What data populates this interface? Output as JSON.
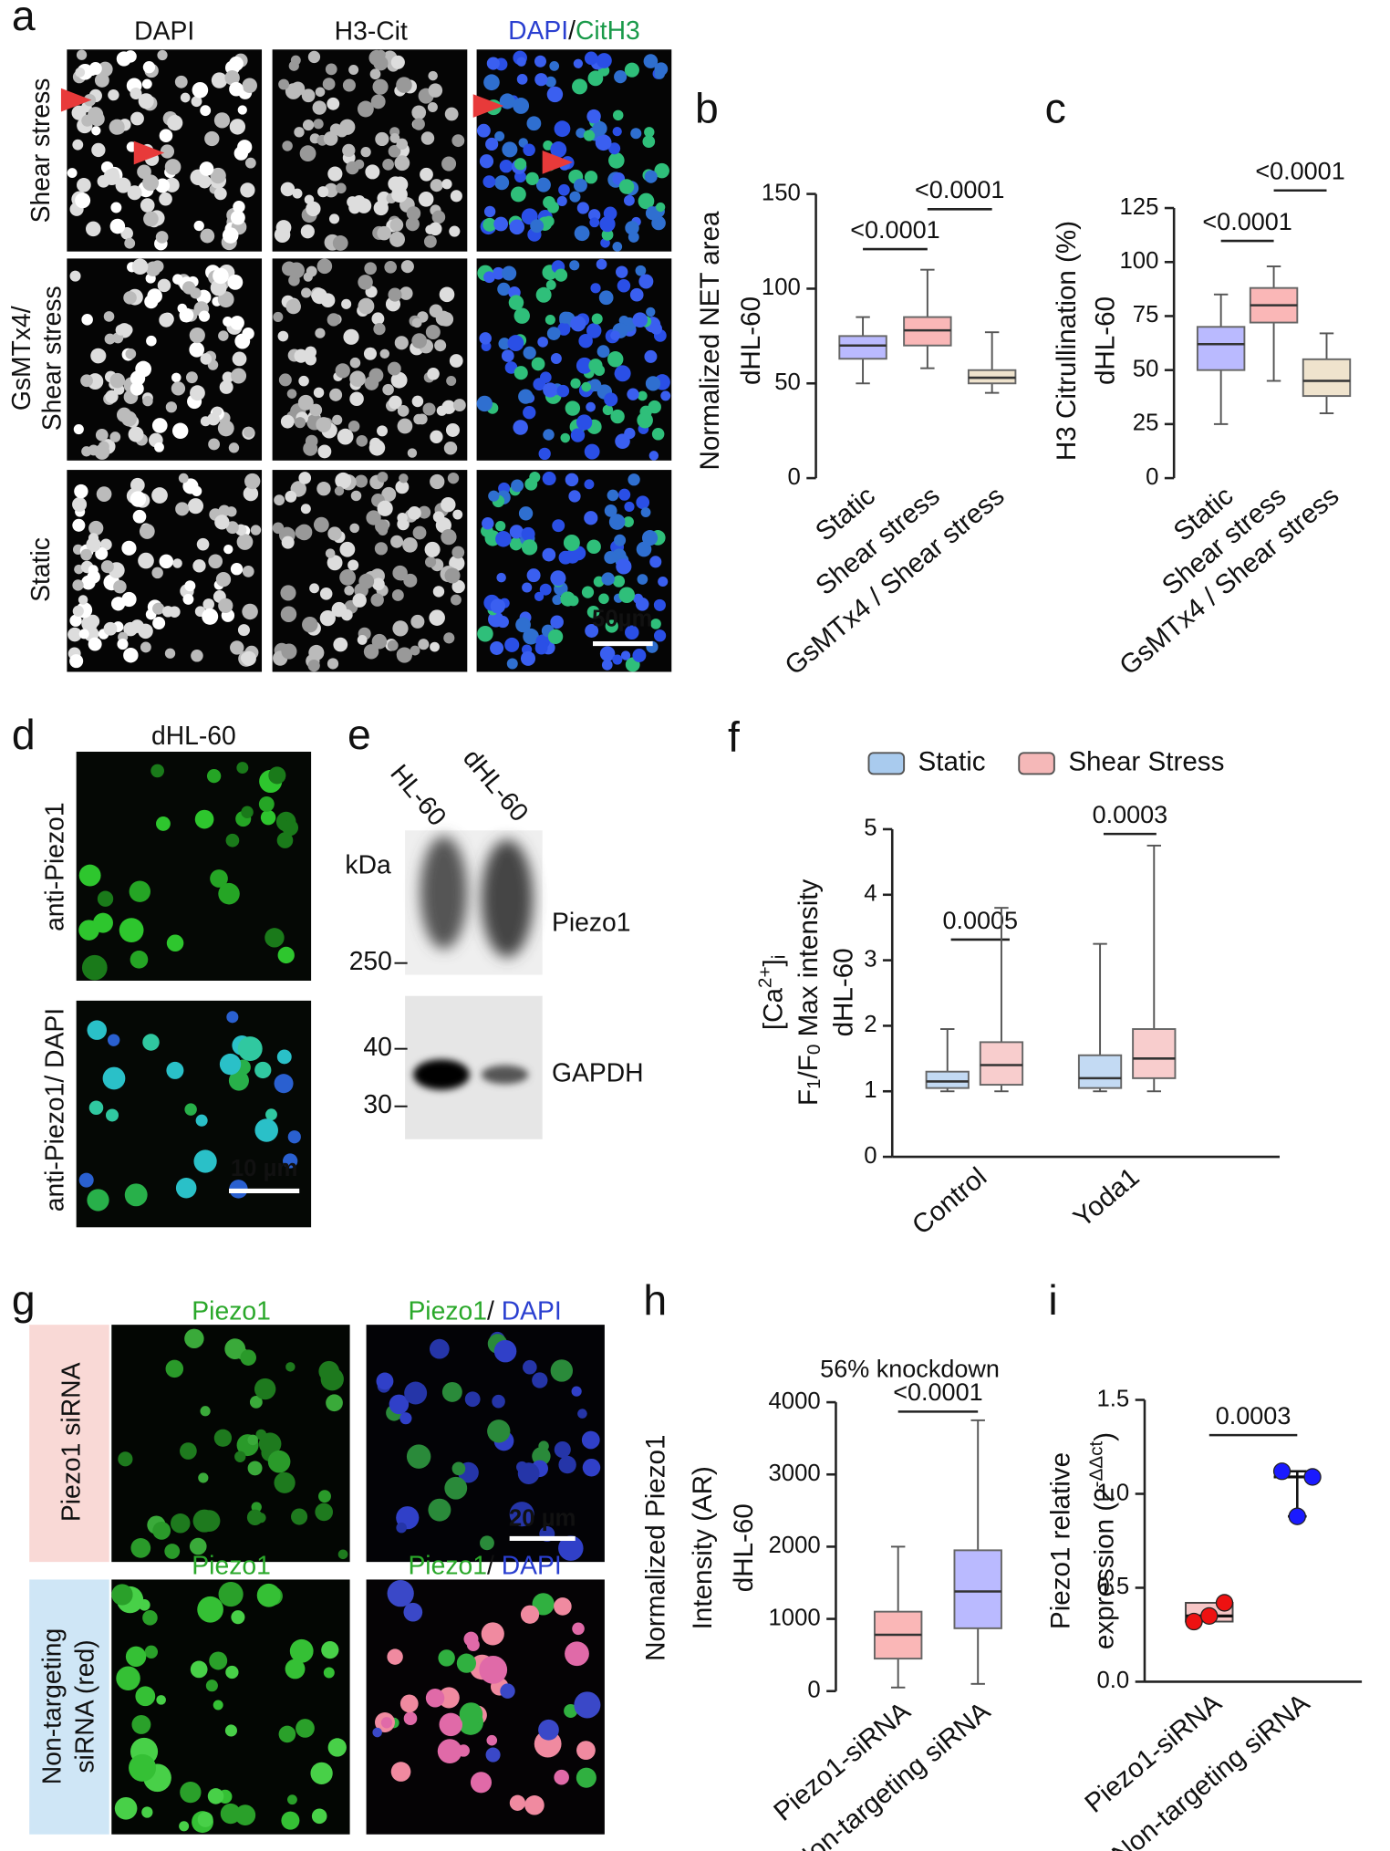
{
  "figure": {
    "panel_a": {
      "letter": "a",
      "columns": [
        "DAPI",
        "H3-Cit"
      ],
      "merge": [
        "DAPI",
        "/",
        "CitH3"
      ],
      "rows": [
        [
          "Shear stress"
        ],
        [
          "GsMTx4/",
          "Shear stress"
        ],
        [
          "Static"
        ]
      ],
      "scale_bar": "50µm"
    },
    "panel_d": {
      "letter": "d",
      "title": "dHL-60",
      "rows": [
        "anti-Piezo1",
        "anti-Piezo1/ DAPI"
      ],
      "scale_bar": "10 µm"
    },
    "panel_e": {
      "letter": "e",
      "lanes": [
        "HL-60",
        "dHL-60"
      ],
      "unit": "kDa",
      "markers": [
        250,
        40,
        30
      ],
      "bands": [
        "Piezo1",
        "GAPDH"
      ]
    },
    "panel_g": {
      "letter": "g",
      "headers": [
        [
          "Piezo1"
        ],
        [
          "Piezo1",
          "/ ",
          "DAPI"
        ]
      ],
      "rows": [
        [
          "Piezo1 siRNA"
        ],
        [
          "Non-targeting",
          "siRNA (red)"
        ]
      ],
      "scale_bar": "20 µm"
    }
  },
  "chart_data": [
    {
      "type": "box",
      "panel": "b",
      "ylabel": [
        "Normalized NET area",
        "dHL-60"
      ],
      "categories": [
        "Static",
        "Shear stress",
        "GsMTx4 / Shear stress"
      ],
      "ylim": [
        0,
        150
      ],
      "yticks": [
        0,
        50,
        100,
        150
      ],
      "annotations": [
        "<0.0001",
        "<0.0001"
      ],
      "series": [
        {
          "colors": [
            "#1a1aff",
            "#ee1111",
            "#c9a15a"
          ],
          "min": [
            50,
            58,
            45
          ],
          "q1": [
            63,
            70,
            50
          ],
          "median": [
            70,
            78,
            53
          ],
          "q3": [
            75,
            85,
            57
          ],
          "max": [
            85,
            110,
            77
          ]
        }
      ]
    },
    {
      "type": "box",
      "panel": "c",
      "ylabel": [
        "H3 Citrullination (%)",
        "dHL-60"
      ],
      "categories": [
        "Static",
        "Shear stress",
        "GsMTx4 / Shear stress"
      ],
      "ylim": [
        0,
        125
      ],
      "yticks": [
        0,
        25,
        50,
        75,
        100,
        125
      ],
      "annotations": [
        "<0.0001",
        "<0.0001"
      ],
      "series": [
        {
          "colors": [
            "#1a1aff",
            "#ee1111",
            "#c9a15a"
          ],
          "min": [
            25,
            45,
            30
          ],
          "q1": [
            50,
            72,
            38
          ],
          "median": [
            62,
            80,
            45
          ],
          "q3": [
            70,
            88,
            55
          ],
          "max": [
            85,
            98,
            67
          ]
        }
      ]
    },
    {
      "type": "box",
      "panel": "f",
      "ylabel": [
        [
          "[Ca",
          "2+",
          "]",
          "i"
        ],
        [
          "F",
          "1",
          "/F",
          "0",
          " Max intensity"
        ],
        "dHL-60"
      ],
      "categories": [
        "Control",
        "Yoda1"
      ],
      "ylim": [
        0,
        5
      ],
      "yticks": [
        0,
        1,
        2,
        3,
        4,
        5
      ],
      "annotations": [
        "0.0005",
        "0.0003"
      ],
      "legend": "top",
      "series": [
        {
          "name": "Static",
          "color": "#a9cbee",
          "min": [
            1,
            1
          ],
          "q1": [
            1.05,
            1.05
          ],
          "median": [
            1.15,
            1.2
          ],
          "q3": [
            1.3,
            1.55
          ],
          "max": [
            1.95,
            3.25
          ]
        },
        {
          "name": "Shear Stress",
          "color": "#f5b8b8",
          "min": [
            1,
            1
          ],
          "q1": [
            1.1,
            1.2
          ],
          "median": [
            1.4,
            1.5
          ],
          "q3": [
            1.75,
            1.95
          ],
          "max": [
            3.8,
            4.75
          ]
        }
      ]
    },
    {
      "type": "box",
      "panel": "h",
      "title": "56% knockdown",
      "ylabel": [
        "Normalized Piezo1",
        "Intensity (AR)",
        "dHL-60"
      ],
      "categories": [
        "Piezo1-siRNA",
        "Non-targeting siRNA"
      ],
      "ylim": [
        0,
        4000
      ],
      "yticks": [
        0,
        1000,
        2000,
        3000,
        4000
      ],
      "annotations": [
        "<0.0001"
      ],
      "series": [
        {
          "colors": [
            "#ee1111",
            "#1a1aff"
          ],
          "min": [
            50,
            100
          ],
          "q1": [
            450,
            870
          ],
          "median": [
            780,
            1380
          ],
          "q3": [
            1100,
            1950
          ],
          "max": [
            2000,
            3750
          ]
        }
      ]
    },
    {
      "type": "dot",
      "panel": "i",
      "ylabel": [
        "Piezo1 relative",
        [
          "expression (2",
          "-ΔΔct",
          ")"
        ]
      ],
      "categories": [
        "Piezo1-siRNA",
        "Non-targeting siRNA"
      ],
      "ylim": [
        0,
        1.5
      ],
      "yticks": [
        {
          "value": 0,
          "label": "0.0"
        },
        {
          "value": 0.5,
          "label": "0.5"
        },
        {
          "value": 1,
          "label": "1.0"
        },
        {
          "value": 1.5,
          "label": "1.5"
        }
      ],
      "annotations": [
        "0.0003"
      ],
      "colors": [
        "#ee1111",
        "#1a1aff"
      ],
      "values": [
        [
          0.32,
          0.42,
          0.35
        ],
        [
          1.12,
          1.09,
          0.88
        ]
      ],
      "median": [
        0.35,
        1.09
      ]
    }
  ]
}
